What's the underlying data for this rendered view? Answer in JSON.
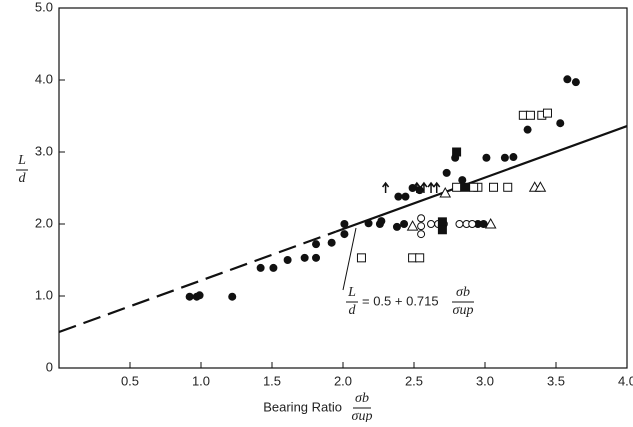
{
  "chart_data": {
    "type": "scatter",
    "xlim": [
      0,
      4.0
    ],
    "ylim": [
      0,
      5.0
    ],
    "xticks": [
      0.5,
      {
        "value": 1.0,
        "label": "1.0"
      },
      1.5,
      {
        "value": 2.0,
        "label": "2.0"
      },
      2.5,
      {
        "value": 3.0,
        "label": "3.0"
      },
      3.5,
      {
        "value": 4.0,
        "label": "4.0"
      }
    ],
    "yticks": [
      0,
      {
        "value": 1.0,
        "label": "1.0"
      },
      {
        "value": 2.0,
        "label": "2.0"
      },
      {
        "value": 3.0,
        "label": "3.0"
      },
      {
        "value": 4.0,
        "label": "4.0"
      },
      {
        "value": 5.0,
        "label": "5.0"
      }
    ],
    "ylabel": {
      "numerator": "L",
      "denominator": "d"
    },
    "xlabel": {
      "text": "Bearing Ratio",
      "numerator": "σb",
      "denominator": "σup"
    },
    "annotation": {
      "numerator": "L",
      "denominator": "d",
      "text": "= 0.5 + 0.715",
      "frac_numerator": "σb",
      "frac_denominator": "σup"
    },
    "color": "#111111",
    "fit": [
      {
        "style": "dashed",
        "x": [
          0,
          1.95
        ],
        "values": [
          0.5,
          1.894
        ]
      },
      {
        "style": "solid",
        "x": [
          1.95,
          4.0
        ],
        "values": [
          1.894,
          3.36
        ]
      }
    ],
    "series": [
      {
        "marker": "filled-circle",
        "x": [
          0.92,
          0.97,
          0.99,
          1.22,
          1.42,
          1.51,
          1.61,
          1.73,
          1.81,
          1.81,
          1.92,
          2.01,
          2.01,
          2.18,
          2.26,
          2.27,
          2.38,
          2.43,
          2.39,
          2.44,
          2.49,
          2.54,
          2.73,
          2.79,
          2.84,
          3.01,
          3.14,
          3.2,
          3.3,
          3.53,
          3.58,
          3.64,
          2.85,
          2.95,
          2.99
        ],
        "values": [
          0.99,
          0.99,
          1.01,
          0.99,
          1.39,
          1.39,
          1.5,
          1.53,
          1.53,
          1.72,
          1.74,
          1.86,
          2.0,
          2.01,
          2.0,
          2.04,
          1.96,
          2.0,
          2.38,
          2.38,
          2.5,
          2.47,
          2.71,
          2.92,
          2.61,
          2.92,
          2.92,
          2.93,
          3.31,
          3.4,
          4.01,
          3.97,
          2.51,
          2.0,
          2.0
        ]
      },
      {
        "marker": "open-square",
        "x": [
          2.13,
          2.49,
          2.54,
          2.95,
          3.06,
          3.16,
          3.27,
          3.32,
          3.4,
          3.44,
          2.92,
          2.8
        ],
        "values": [
          1.53,
          1.53,
          1.53,
          2.51,
          2.51,
          2.51,
          3.51,
          3.51,
          3.51,
          3.54,
          2.51,
          2.51
        ]
      },
      {
        "marker": "open-circle",
        "x": [
          2.55,
          2.55,
          2.55,
          2.62,
          2.67,
          2.71,
          2.82,
          2.87,
          2.91
        ],
        "values": [
          2.08,
          1.97,
          1.86,
          2.0,
          2.0,
          2.0,
          2.0,
          2.0,
          2.0
        ]
      },
      {
        "marker": "open-triangle",
        "x": [
          2.49,
          3.04,
          3.35,
          3.39,
          2.72
        ],
        "values": [
          1.97,
          2.0,
          2.51,
          2.51,
          2.43
        ]
      },
      {
        "marker": "filled-square",
        "x": [
          2.7,
          2.7,
          2.8,
          2.86
        ],
        "values": [
          2.03,
          1.92,
          3.0,
          2.51
        ]
      },
      {
        "marker": "arrow",
        "x": [
          2.3,
          2.52,
          2.57,
          2.62,
          2.66
        ],
        "values": [
          2.5,
          2.5,
          2.5,
          2.5,
          2.5
        ]
      }
    ]
  }
}
